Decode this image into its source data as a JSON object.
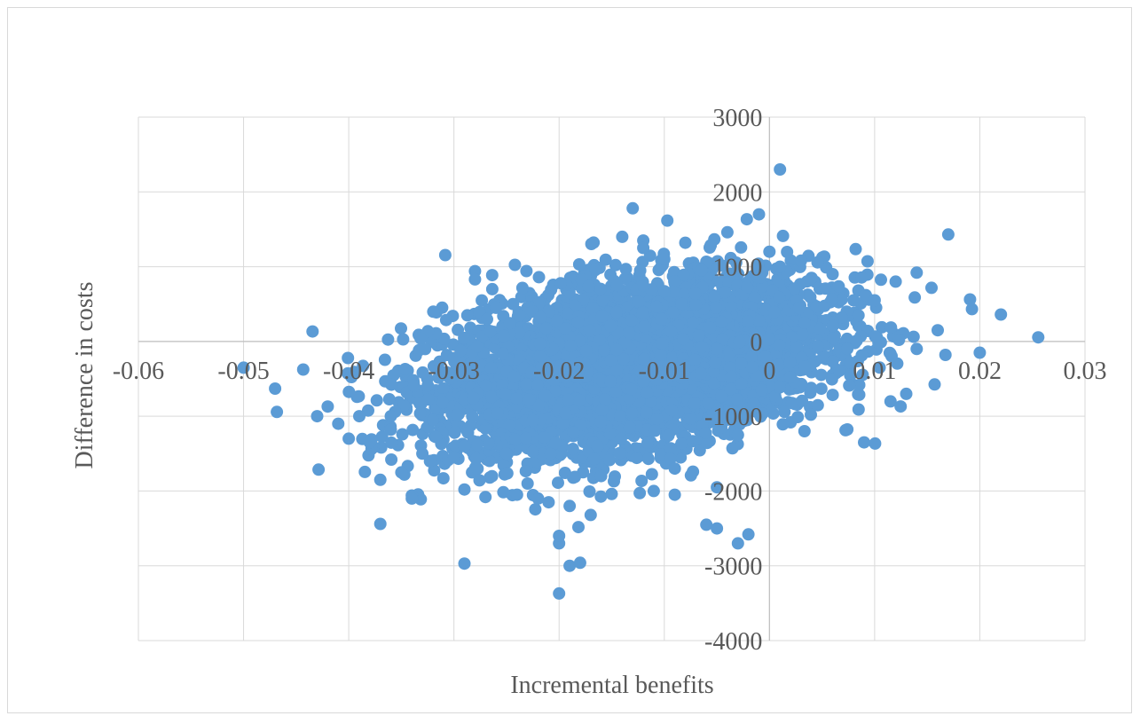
{
  "chart_data": {
    "type": "scatter",
    "title": "",
    "xlabel": "Incremental benefits",
    "ylabel": "Difference in  costs",
    "xlim": [
      -0.06,
      0.03
    ],
    "ylim": [
      -4000,
      3000
    ],
    "x_ticks": [
      -0.06,
      -0.05,
      -0.04,
      -0.03,
      -0.02,
      -0.01,
      0,
      0.01,
      0.02,
      0.03
    ],
    "x_tick_labels": [
      "-0.06",
      "-0.05",
      "-0.04",
      "-0.03",
      "-0.02",
      "-0.01",
      "0",
      "0.01",
      "0.02",
      "0.03"
    ],
    "y_ticks": [
      -4000,
      -3000,
      -2000,
      -1000,
      0,
      1000,
      2000,
      3000
    ],
    "y_tick_labels": [
      "-4000",
      "-3000",
      "-2000",
      "-1000",
      "0",
      "1000",
      "2000",
      "3000"
    ],
    "grid": true,
    "legend": "none",
    "marker_color": "#5b9bd5",
    "point_count_estimate": 5000,
    "cloud": {
      "mean_x": -0.013,
      "mean_y": -300,
      "sd_x": 0.009,
      "sd_y": 550,
      "correlation": 0.35
    },
    "series": [
      {
        "x": [
          -0.05,
          -0.047,
          -0.042,
          -0.043,
          -0.04,
          -0.037,
          -0.036,
          -0.035,
          -0.037,
          -0.034,
          -0.033,
          -0.031,
          -0.032,
          -0.03,
          -0.029,
          -0.029,
          -0.028,
          -0.028,
          -0.027,
          -0.026,
          -0.029,
          -0.025,
          -0.024,
          -0.023,
          -0.022,
          -0.021,
          -0.02,
          -0.02,
          -0.019,
          -0.018,
          -0.02,
          -0.017,
          -0.016,
          -0.014,
          -0.013,
          -0.012,
          -0.012,
          -0.011,
          -0.01,
          -0.009,
          -0.008,
          -0.006,
          -0.005,
          -0.004,
          -0.003,
          -0.002,
          -0.001,
          0,
          0.001,
          0.001,
          0.003,
          0.004,
          0.006,
          0.008,
          0.01,
          0.012,
          0.014,
          0.016,
          0.017,
          0.02,
          0.022,
          -0.041,
          -0.039,
          -0.038,
          -0.036,
          -0.034,
          -0.019,
          -0.015,
          -0.009,
          -0.005,
          -0.003,
          0.009,
          0.013,
          0.014
        ],
        "y": [
          -350,
          -630,
          -870,
          -1000,
          -1300,
          -1850,
          -1000,
          -1750,
          -2440,
          -2060,
          -1500,
          -1830,
          -1050,
          -1550,
          -1980,
          -2970,
          940,
          830,
          -2080,
          450,
          -1400,
          -1500,
          -2050,
          -1900,
          -2100,
          -2150,
          -2700,
          -3370,
          -3000,
          -2960,
          -2600,
          -2320,
          -1800,
          1400,
          1780,
          1350,
          1250,
          -2000,
          1100,
          -2050,
          1320,
          -2450,
          -2500,
          1460,
          -2700,
          -2580,
          1700,
          1200,
          2300,
          1000,
          1080,
          850,
          900,
          550,
          550,
          800,
          920,
          150,
          1430,
          -150,
          360,
          -1100,
          -1000,
          -1350,
          -1180,
          -2100,
          -2200,
          -2040,
          -1700,
          -1950,
          -1250,
          -1350,
          -700,
          -100
        ]
      }
    ]
  }
}
